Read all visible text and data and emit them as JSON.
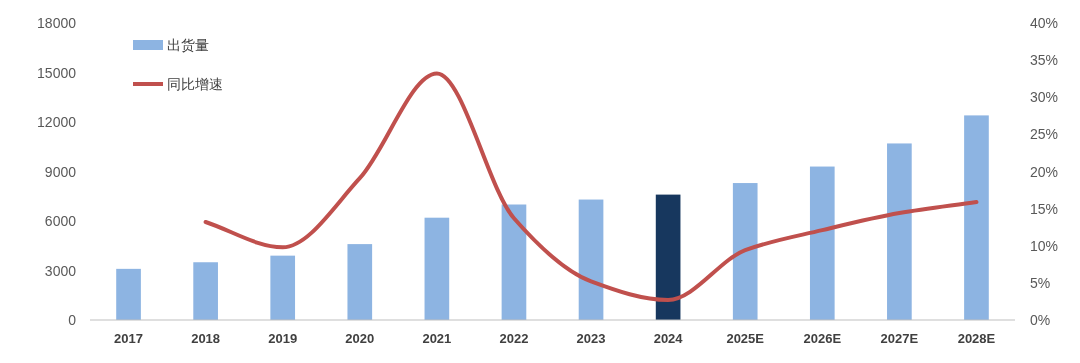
{
  "chart_data": {
    "type": "bar",
    "categories": [
      "2017",
      "2018",
      "2019",
      "2020",
      "2021",
      "2022",
      "2023",
      "2024",
      "2025E",
      "2026E",
      "2027E",
      "2028E"
    ],
    "series": [
      {
        "name": "出货量",
        "colors": [
          "#8db4e2",
          "#8db4e2",
          "#8db4e2",
          "#8db4e2",
          "#8db4e2",
          "#8db4e2",
          "#8db4e2",
          "#17375e",
          "#8db4e2",
          "#8db4e2",
          "#8db4e2",
          "#8db4e2"
        ],
        "values": [
          3100,
          3500,
          3900,
          4600,
          6200,
          7000,
          7300,
          7600,
          8300,
          9300,
          10700,
          12400
        ]
      },
      {
        "name": "同比增速",
        "type": "line",
        "color": "#c0504d",
        "axis": "y2",
        "values": [
          null,
          13.2,
          9.8,
          19.1,
          33.2,
          13.7,
          5.2,
          2.7,
          9.4,
          12.1,
          14.4,
          15.9
        ]
      }
    ],
    "ylim": [
      0,
      18000
    ],
    "yticks": [
      0,
      3000,
      6000,
      9000,
      12000,
      15000,
      18000
    ],
    "y2lim": [
      0,
      40
    ],
    "y2ticks": [
      {
        "value": 0,
        "label": "0%"
      },
      {
        "value": 5,
        "label": "5%"
      },
      {
        "value": 10,
        "label": "10%"
      },
      {
        "value": 15,
        "label": "15%"
      },
      {
        "value": 20,
        "label": "20%"
      },
      {
        "value": 25,
        "label": "25%"
      },
      {
        "value": 30,
        "label": "30%"
      },
      {
        "value": 35,
        "label": "35%"
      },
      {
        "value": 40,
        "label": "40%"
      }
    ],
    "legend": "top left",
    "grid": false
  }
}
